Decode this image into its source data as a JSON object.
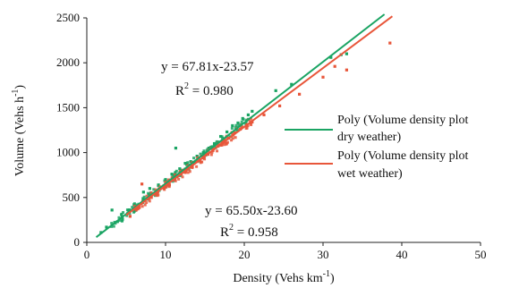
{
  "chart_data": {
    "type": "scatter",
    "xlabel": "Density (Vehs km",
    "xlabel_sup": "-1",
    "xlabel_end": ")",
    "ylabel": "Volume (Vehs h",
    "ylabel_sup": "-1",
    "ylabel_end": ")",
    "xlim": [
      0,
      50
    ],
    "ylim": [
      0,
      2500
    ],
    "xticks": [
      "0",
      "10",
      "20",
      "30",
      "40",
      "50"
    ],
    "yticks": [
      "0",
      "500",
      "1000",
      "1500",
      "2000",
      "2500"
    ],
    "grid": false,
    "legend_position": "right",
    "series": [
      {
        "name": "Poly (Volume density plot dry weather)",
        "legend_line1": "Poly (Volume density plot",
        "legend_line2": "dry weather)",
        "color": "#1aa463",
        "trend": {
          "slope": 67.81,
          "intercept": -23.57,
          "x_start": 1.2,
          "x_end": 37.8
        },
        "equation": "y = 67.81x-23.57",
        "r2_prefix": "R",
        "r2_sup": "2",
        "r2_value": " = 0.980",
        "points": [
          [
            1.8,
            110
          ],
          [
            2.5,
            170
          ],
          [
            3.2,
            360
          ],
          [
            4.5,
            280
          ],
          [
            6.0,
            420
          ],
          [
            7.2,
            560
          ],
          [
            8.0,
            600
          ],
          [
            9.1,
            640
          ],
          [
            10.0,
            700
          ],
          [
            10.8,
            760
          ],
          [
            11.3,
            1050
          ],
          [
            11.8,
            820
          ],
          [
            12.5,
            880
          ],
          [
            13.2,
            900
          ],
          [
            14.0,
            960
          ],
          [
            14.8,
            1000
          ],
          [
            15.5,
            1050
          ],
          [
            16.2,
            1100
          ],
          [
            17.0,
            1180
          ],
          [
            17.8,
            1230
          ],
          [
            18.5,
            1300
          ],
          [
            19.2,
            1330
          ],
          [
            19.8,
            1380
          ],
          [
            20.5,
            1420
          ],
          [
            21.0,
            1460
          ],
          [
            24.0,
            1690
          ],
          [
            26.0,
            1760
          ],
          [
            31.0,
            2060
          ],
          [
            32.3,
            2090
          ],
          [
            33.0,
            2100
          ]
        ]
      },
      {
        "name": "Poly (Volume density plot wet weather)",
        "legend_line1": "Poly (Volume density plot",
        "legend_line2": "wet weather)",
        "color": "#e8563a",
        "trend": {
          "slope": 65.5,
          "intercept": -23.6,
          "x_start": 5.0,
          "x_end": 38.8
        },
        "equation": "y = 65.50x-23.60",
        "r2_prefix": "R",
        "r2_sup": "2",
        "r2_value": " = 0.958",
        "points": [
          [
            5.5,
            290
          ],
          [
            6.5,
            380
          ],
          [
            7.0,
            650
          ],
          [
            8.2,
            500
          ],
          [
            9.0,
            560
          ],
          [
            9.8,
            600
          ],
          [
            10.5,
            640
          ],
          [
            11.2,
            700
          ],
          [
            12.0,
            760
          ],
          [
            12.6,
            800
          ],
          [
            13.3,
            860
          ],
          [
            14.0,
            900
          ],
          [
            14.7,
            940
          ],
          [
            15.4,
            980
          ],
          [
            16.0,
            1040
          ],
          [
            16.7,
            1080
          ],
          [
            17.4,
            1120
          ],
          [
            18.0,
            1160
          ],
          [
            18.8,
            1220
          ],
          [
            19.5,
            1260
          ],
          [
            20.3,
            1300
          ],
          [
            21.0,
            1340
          ],
          [
            22.5,
            1420
          ],
          [
            24.5,
            1520
          ],
          [
            27.0,
            1650
          ],
          [
            30.0,
            1840
          ],
          [
            31.5,
            1960
          ],
          [
            33.0,
            1920
          ],
          [
            38.5,
            2220
          ]
        ]
      }
    ]
  }
}
